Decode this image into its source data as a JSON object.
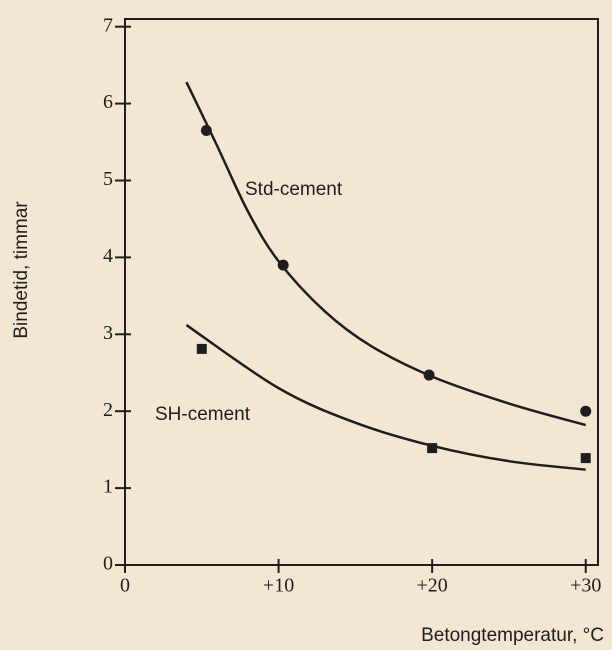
{
  "chart_data": {
    "type": "line",
    "x_label": "Betongtemperatur, °C",
    "y_label": "Bindetid, timmar",
    "xlim": [
      0,
      30.8
    ],
    "ylim": [
      0,
      7.1
    ],
    "xticks": [
      0,
      {
        "value": 10,
        "label": "+10"
      },
      {
        "value": 20,
        "label": "+20"
      },
      {
        "value": 30,
        "label": "+30"
      }
    ],
    "yticks": [
      0,
      1,
      2,
      3,
      4,
      5,
      6,
      7
    ],
    "series": [
      {
        "name": "Std-cement",
        "color": "#1e1e1e",
        "marker": "circle",
        "x": [
          5.3,
          10.3,
          19.8,
          30
        ],
        "values": [
          5.65,
          3.9,
          2.47,
          2.0
        ],
        "curve": {
          "x": [
            4,
            6,
            8,
            10,
            13,
            16,
            20,
            25,
            30
          ],
          "values": [
            6.28,
            5.45,
            4.6,
            3.95,
            3.3,
            2.85,
            2.45,
            2.1,
            1.82
          ]
        }
      },
      {
        "name": "SH-cement",
        "color": "#1e1e1e",
        "marker": "square",
        "x": [
          5.0,
          20.0,
          30
        ],
        "values": [
          2.81,
          1.52,
          1.39
        ],
        "curve": {
          "x": [
            4,
            10,
            15,
            20,
            25,
            30
          ],
          "values": [
            3.12,
            2.3,
            1.85,
            1.55,
            1.35,
            1.24
          ]
        }
      }
    ]
  }
}
